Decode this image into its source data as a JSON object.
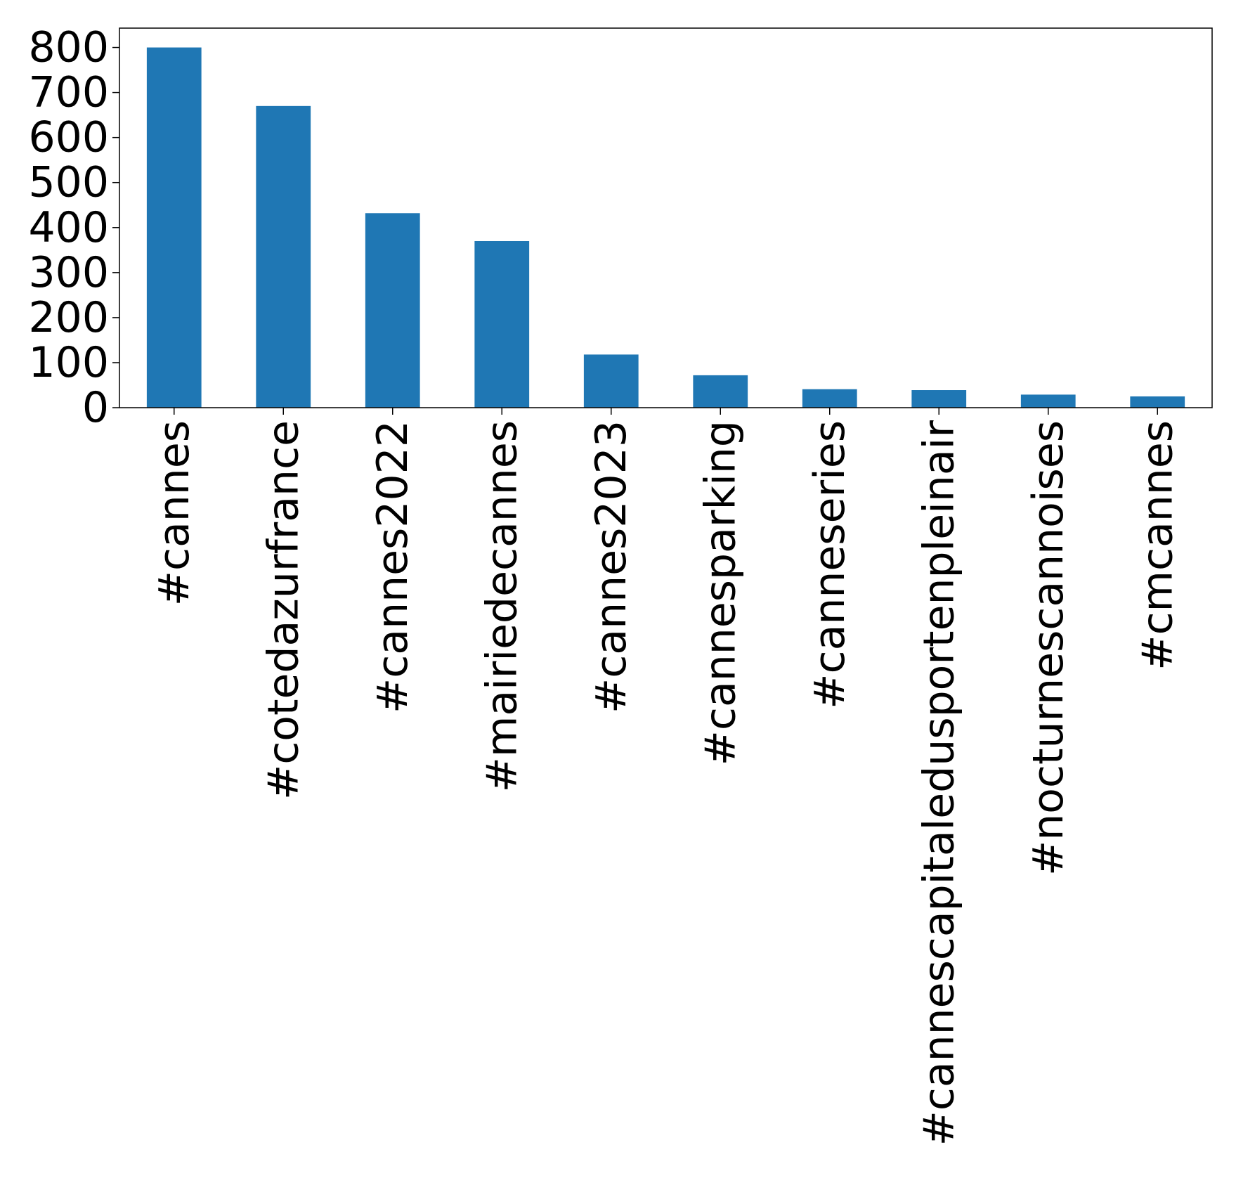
{
  "chart_data": {
    "type": "bar",
    "title": "",
    "xlabel": "",
    "ylabel": "",
    "categories": [
      "#cannes",
      "#cotedazurfrance",
      "#cannes2022",
      "#mairiedecannes",
      "#cannes2023",
      "#cannesparking",
      "#canneseries",
      "#cannescapitaledusportenpleinair",
      "#nocturnescannoises",
      "#cmcannes"
    ],
    "values": [
      800,
      670,
      432,
      370,
      118,
      72,
      41,
      39,
      29,
      25
    ],
    "ylim": [
      0,
      843
    ],
    "yticks": [
      0,
      100,
      200,
      300,
      400,
      500,
      600,
      700,
      800
    ],
    "grid": false,
    "legend": "none",
    "bar_color": "#1f77b4"
  }
}
